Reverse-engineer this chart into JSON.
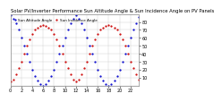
{
  "title": "Solar PV/Inverter Performance Sun Altitude Angle & Sun Incidence Angle on PV Panels",
  "background_color": "#ffffff",
  "plot_bg_color": "#ffffff",
  "grid_color": "#cccccc",
  "blue_color": "#0000cc",
  "red_color": "#cc0000",
  "x_values": [
    0,
    1,
    2,
    3,
    4,
    5,
    6,
    7,
    8,
    9,
    10,
    11,
    12,
    13,
    14,
    15,
    16,
    17,
    18,
    19,
    20,
    21,
    22,
    23,
    24,
    25,
    26,
    27,
    28,
    29,
    30,
    31,
    32,
    33,
    34,
    35,
    36,
    37,
    38,
    39,
    40,
    41,
    42,
    43,
    44,
    45,
    46,
    47
  ],
  "blue_values": [
    88,
    84,
    78,
    70,
    60,
    50,
    40,
    30,
    20,
    12,
    6,
    2,
    0,
    2,
    6,
    12,
    20,
    30,
    40,
    50,
    60,
    70,
    78,
    84,
    88,
    84,
    78,
    70,
    60,
    50,
    40,
    30,
    20,
    12,
    6,
    2,
    0,
    2,
    6,
    12,
    20,
    30,
    40,
    50,
    60,
    70,
    78,
    86
  ],
  "red_values": [
    5,
    8,
    14,
    22,
    30,
    40,
    50,
    58,
    65,
    70,
    73,
    75,
    76,
    75,
    73,
    70,
    65,
    58,
    50,
    40,
    30,
    22,
    14,
    8,
    5,
    8,
    14,
    22,
    30,
    40,
    50,
    58,
    65,
    70,
    73,
    75,
    76,
    75,
    73,
    70,
    65,
    58,
    50,
    40,
    30,
    22,
    14,
    8
  ],
  "ylim_left": [
    0,
    90
  ],
  "ylim_right": [
    0,
    90
  ],
  "xlim": [
    0,
    47
  ],
  "yticks_right": [
    10,
    20,
    30,
    40,
    50,
    60,
    70,
    80
  ],
  "ytick_labels_right": [
    "10",
    "20",
    "30",
    "40",
    "50",
    "60",
    "70",
    "80"
  ],
  "xtick_positions": [
    0,
    4,
    8,
    12,
    16,
    20,
    24,
    28,
    32,
    36,
    40,
    44
  ],
  "xtick_labels": [
    "0",
    "2",
    "4",
    "6",
    "8",
    "10",
    "12",
    "14",
    "16",
    "18",
    "20",
    "22"
  ],
  "legend_labels": [
    "Sun Altitude Angle",
    "Sun Incidence Angle"
  ],
  "title_fontsize": 3.8,
  "tick_fontsize": 3.5,
  "legend_fontsize": 3.0,
  "markersize": 1.2,
  "text_color": "#000000"
}
